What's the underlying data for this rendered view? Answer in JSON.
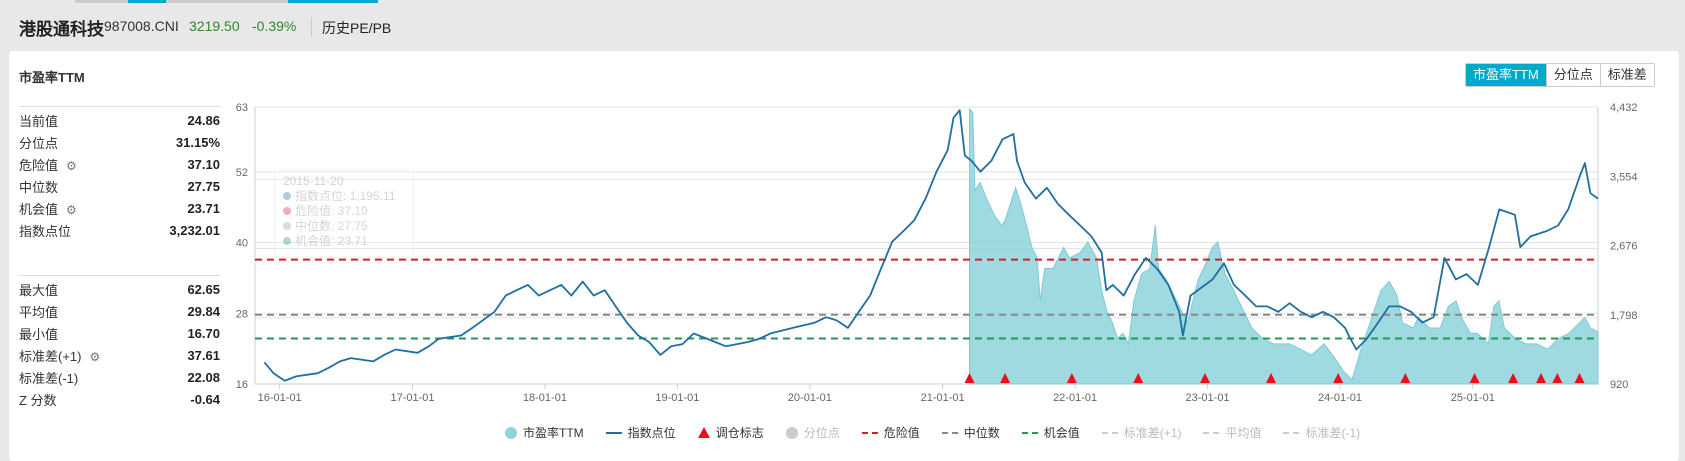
{
  "header": {
    "title": "港股通科技",
    "code": "987008.CNI",
    "price": "3219.50",
    "change": "-0.39%",
    "link": "历史PE/PB"
  },
  "section": {
    "title": "市盈率TTM",
    "tabs": [
      {
        "label": "市盈率TTM",
        "active": true
      },
      {
        "label": "分位点",
        "active": false
      },
      {
        "label": "标准差",
        "active": false
      }
    ]
  },
  "stats_top": [
    {
      "label": "当前值",
      "value": "24.86"
    },
    {
      "label": "分位点",
      "value": "31.15%"
    },
    {
      "label": "危险值",
      "value": "37.10",
      "gear": true
    },
    {
      "label": "中位数",
      "value": "27.75"
    },
    {
      "label": "机会值",
      "value": "23.71",
      "gear": true
    },
    {
      "label": "指数点位",
      "value": "3,232.01"
    }
  ],
  "stats_bottom": [
    {
      "label": "最大值",
      "value": "62.65"
    },
    {
      "label": "平均值",
      "value": "29.84"
    },
    {
      "label": "最小值",
      "value": "16.70"
    },
    {
      "label": "标准差(+1)",
      "value": "37.61",
      "gear": true
    },
    {
      "label": "标准差(-1)",
      "value": "22.08"
    },
    {
      "label": "Z 分数",
      "value": "-0.64"
    }
  ],
  "tooltip": {
    "date": "2015-11-20",
    "lines": [
      "指数点位: 1,195.11",
      "危险值: 37.10",
      "中位数: 27.75",
      "机会值: 23.71"
    ]
  },
  "legend": [
    {
      "label": "市盈率TTM",
      "type": "circle",
      "color": "#8fd3dc",
      "enabled": true
    },
    {
      "label": "指数点位",
      "type": "line",
      "color": "#1f6f9f",
      "enabled": true
    },
    {
      "label": "调仓标志",
      "type": "triangle",
      "color": "#e8101a",
      "enabled": true
    },
    {
      "label": "分位点",
      "type": "circle",
      "color": "#cccccc",
      "enabled": false
    },
    {
      "label": "危险值",
      "type": "dash",
      "color": "#d0202a",
      "enabled": true
    },
    {
      "label": "中位数",
      "type": "dash",
      "color": "#888888",
      "enabled": true
    },
    {
      "label": "机会值",
      "type": "dash",
      "color": "#229955",
      "enabled": true
    },
    {
      "label": "标准差(+1)",
      "type": "dash",
      "color": "#cccccc",
      "enabled": false
    },
    {
      "label": "平均值",
      "type": "dash",
      "color": "#cccccc",
      "enabled": false
    },
    {
      "label": "标准差(-1)",
      "type": "dash",
      "color": "#cccccc",
      "enabled": false
    }
  ],
  "chart_data": {
    "type": "line",
    "xlim": [
      "2015-10-25",
      "2025-12-12"
    ],
    "x_ticks": [
      "16-01-01",
      "17-01-01",
      "18-01-01",
      "19-01-01",
      "20-01-01",
      "21-01-01",
      "22-01-01",
      "23-01-01",
      "24-01-01",
      "25-01-01"
    ],
    "y_left": {
      "ticks": [
        "63",
        "52",
        "40",
        "28",
        "16"
      ],
      "range": [
        16,
        63
      ]
    },
    "y_right": {
      "ticks": [
        "4,432",
        "3,554",
        "2,676",
        "1,798",
        "920"
      ],
      "range": [
        920,
        4432
      ]
    },
    "grid": true,
    "reference_lines": [
      {
        "name": "危险值",
        "value": 37.1,
        "color": "#d0202a"
      },
      {
        "name": "中位数",
        "value": 27.75,
        "color": "#888888"
      },
      {
        "name": "机会值",
        "value": 23.71,
        "color": "#229955"
      }
    ],
    "series": [
      {
        "name": "指数点位",
        "axis": "right",
        "color": "#1f6f9f",
        "points": [
          [
            "2015-11-20",
            1195
          ],
          [
            "2015-12",
            1057
          ],
          [
            "2016-01",
            961
          ],
          [
            "2016-02",
            1016
          ],
          [
            "2016-04",
            1057
          ],
          [
            "2016-05",
            1125
          ],
          [
            "2016-06",
            1207
          ],
          [
            "2016-07",
            1248
          ],
          [
            "2016-09",
            1207
          ],
          [
            "2016-10",
            1289
          ],
          [
            "2016-11",
            1357
          ],
          [
            "2017-01",
            1316
          ],
          [
            "2017-02",
            1398
          ],
          [
            "2017-03",
            1494
          ],
          [
            "2017-05",
            1535
          ],
          [
            "2017-06",
            1631
          ],
          [
            "2017-08",
            1836
          ],
          [
            "2017-09",
            2041
          ],
          [
            "2017-10",
            2109
          ],
          [
            "2017-11",
            2177
          ],
          [
            "2017-12",
            2041
          ],
          [
            "2018-01",
            2109
          ],
          [
            "2018-02",
            2177
          ],
          [
            "2018-03",
            2041
          ],
          [
            "2018-04",
            2218
          ],
          [
            "2018-05",
            2041
          ],
          [
            "2018-06",
            2109
          ],
          [
            "2018-07",
            1904
          ],
          [
            "2018-08",
            1699
          ],
          [
            "2018-09",
            1535
          ],
          [
            "2018-10",
            1453
          ],
          [
            "2018-11",
            1289
          ],
          [
            "2018-12",
            1398
          ],
          [
            "2019-01",
            1426
          ],
          [
            "2019-02",
            1562
          ],
          [
            "2019-04",
            1453
          ],
          [
            "2019-05",
            1398
          ],
          [
            "2019-07",
            1453
          ],
          [
            "2019-08",
            1494
          ],
          [
            "2019-09",
            1562
          ],
          [
            "2019-11",
            1631
          ],
          [
            "2020-01",
            1699
          ],
          [
            "2020-02",
            1767
          ],
          [
            "2020-03",
            1726
          ],
          [
            "2020-04",
            1631
          ],
          [
            "2020-05",
            1836
          ],
          [
            "2020-06",
            2041
          ],
          [
            "2020-07",
            2382
          ],
          [
            "2020-08",
            2724
          ],
          [
            "2020-09",
            2860
          ],
          [
            "2020-10",
            2997
          ],
          [
            "2020-11",
            3270
          ],
          [
            "2020-12",
            3612
          ],
          [
            "2021-01",
            3885
          ],
          [
            "2021-01-31",
            4295
          ],
          [
            "2021-02-17",
            4391
          ],
          [
            "2021-03-03",
            3817
          ],
          [
            "2021-03-22",
            3749
          ],
          [
            "2021-04",
            3612
          ],
          [
            "2021-05",
            3749
          ],
          [
            "2021-06",
            4022
          ],
          [
            "2021-07",
            4090
          ],
          [
            "2021-07-25",
            3749
          ],
          [
            "2021-08",
            3475
          ],
          [
            "2021-09",
            3270
          ],
          [
            "2021-10",
            3407
          ],
          [
            "2021-11",
            3202
          ],
          [
            "2021-12",
            3065
          ],
          [
            "2022-01",
            2929
          ],
          [
            "2022-02",
            2792
          ],
          [
            "2022-03",
            2587
          ],
          [
            "2022-03-28",
            2109
          ],
          [
            "2022-04",
            2177
          ],
          [
            "2022-05",
            2041
          ],
          [
            "2022-06",
            2314
          ],
          [
            "2022-07",
            2519
          ],
          [
            "2022-08",
            2382
          ],
          [
            "2022-09",
            2177
          ],
          [
            "2022-10",
            1836
          ],
          [
            "2022-10-25",
            1535
          ],
          [
            "2022-11",
            2041
          ],
          [
            "2023-01",
            2246
          ],
          [
            "2023-02",
            2450
          ],
          [
            "2023-03",
            2177
          ],
          [
            "2023-04",
            2041
          ],
          [
            "2023-05",
            1904
          ],
          [
            "2023-06",
            1904
          ],
          [
            "2023-07",
            1836
          ],
          [
            "2023-08",
            1945
          ],
          [
            "2023-09",
            1836
          ],
          [
            "2023-10",
            1767
          ],
          [
            "2023-11",
            1836
          ],
          [
            "2023-12",
            1767
          ],
          [
            "2024-01",
            1631
          ],
          [
            "2024-01-25",
            1535
          ],
          [
            "2024-02",
            1357
          ],
          [
            "2024-03",
            1494
          ],
          [
            "2024-04",
            1699
          ],
          [
            "2024-05",
            1904
          ],
          [
            "2024-06",
            1904
          ],
          [
            "2024-07",
            1836
          ],
          [
            "2024-08",
            1699
          ],
          [
            "2024-09",
            1767
          ],
          [
            "2024-10",
            2519
          ],
          [
            "2024-11",
            2246
          ],
          [
            "2024-12",
            2314
          ],
          [
            "2025-01",
            2177
          ],
          [
            "2025-02",
            2655
          ],
          [
            "2025-03",
            3134
          ],
          [
            "2025-04-27",
            3065
          ],
          [
            "2025-05-12",
            2655
          ],
          [
            "2025-06-09",
            2792
          ],
          [
            "2025-07-24",
            2860
          ],
          [
            "2025-08-24",
            2929
          ],
          [
            "2025-09-21",
            3134
          ],
          [
            "2025-10-22",
            3544
          ],
          [
            "2025-11-06",
            3721
          ],
          [
            "2025-11-21",
            3339
          ],
          [
            "2025-12-12",
            3270
          ]
        ]
      },
      {
        "name": "市盈率TTM",
        "axis": "left",
        "type": "area",
        "color": "#8fd3dc",
        "points": [
          [
            "2021-03-16",
            62.65
          ],
          [
            "2021-03-25",
            62.1
          ],
          [
            "2021-03-31",
            48.9
          ],
          [
            "2021-04-14",
            50.2
          ],
          [
            "2021-05-02",
            47.5
          ],
          [
            "2021-05-23",
            44.7
          ],
          [
            "2021-06-13",
            42.9
          ],
          [
            "2021-06-22",
            43.8
          ],
          [
            "2021-07-21",
            49.3
          ],
          [
            "2021-08-05",
            46.5
          ],
          [
            "2021-08-20",
            42.9
          ],
          [
            "2021-09-04",
            39.2
          ],
          [
            "2021-09-18",
            37.4
          ],
          [
            "2021-09-27",
            30.1
          ],
          [
            "2021-10-09",
            35.6
          ],
          [
            "2021-11-01",
            35.6
          ],
          [
            "2021-12-01",
            39.2
          ],
          [
            "2021-12-16",
            37.4
          ],
          [
            "2022-01-15",
            38.3
          ],
          [
            "2022-02-05",
            40.1
          ],
          [
            "2022-03-01",
            37.4
          ],
          [
            "2022-03-15",
            31.9
          ],
          [
            "2022-03-30",
            28.3
          ],
          [
            "2022-04-14",
            26.4
          ],
          [
            "2022-04-28",
            23.7
          ],
          [
            "2022-05-13",
            24.6
          ],
          [
            "2022-05-28",
            22.8
          ],
          [
            "2022-06-12",
            30.1
          ],
          [
            "2022-07-03",
            34.7
          ],
          [
            "2022-07-26",
            35.6
          ],
          [
            "2022-08-10",
            42.9
          ],
          [
            "2022-08-19",
            35.6
          ],
          [
            "2022-09-09",
            33.7
          ],
          [
            "2022-10-08",
            30.1
          ],
          [
            "2022-11-07",
            26.4
          ],
          [
            "2022-12-06",
            33.7
          ],
          [
            "2022-12-21",
            35.6
          ],
          [
            "2023-01-14",
            39.2
          ],
          [
            "2023-01-29",
            40.1
          ],
          [
            "2023-02-18",
            34.7
          ],
          [
            "2023-03-14",
            31.9
          ],
          [
            "2023-04-04",
            29.2
          ],
          [
            "2023-05-03",
            25.5
          ],
          [
            "2023-06-02",
            23.7
          ],
          [
            "2023-07-02",
            22.8
          ],
          [
            "2023-08-15",
            22.8
          ],
          [
            "2023-09-14",
            21.9
          ],
          [
            "2023-10-14",
            20.9
          ],
          [
            "2023-11-18",
            22.8
          ],
          [
            "2023-12-12",
            20.9
          ],
          [
            "2024-01-10",
            18.2
          ],
          [
            "2024-02-03",
            16.7
          ],
          [
            "2024-02-23",
            20.9
          ],
          [
            "2024-03-24",
            26.4
          ],
          [
            "2024-04-23",
            31.9
          ],
          [
            "2024-05-16",
            33.4
          ],
          [
            "2024-06-06",
            31.0
          ],
          [
            "2024-06-21",
            26.4
          ],
          [
            "2024-07-21",
            25.5
          ],
          [
            "2024-08-04",
            27.3
          ],
          [
            "2024-09-03",
            25.5
          ],
          [
            "2024-10-03",
            25.5
          ],
          [
            "2024-10-26",
            29.2
          ],
          [
            "2024-11-16",
            30.1
          ],
          [
            "2024-12-01",
            27.3
          ],
          [
            "2024-12-25",
            24.6
          ],
          [
            "2025-01-14",
            24.6
          ],
          [
            "2025-02-13",
            22.8
          ],
          [
            "2025-02-28",
            29.2
          ],
          [
            "2025-03-14",
            30.1
          ],
          [
            "2025-03-29",
            25.5
          ],
          [
            "2025-04-28",
            23.7
          ],
          [
            "2025-05-27",
            22.8
          ],
          [
            "2025-06-26",
            22.8
          ],
          [
            "2025-07-26",
            21.9
          ],
          [
            "2025-08-24",
            23.7
          ],
          [
            "2025-09-23",
            24.6
          ],
          [
            "2025-10-22",
            26.4
          ],
          [
            "2025-11-06",
            27.3
          ],
          [
            "2025-11-21",
            25.5
          ],
          [
            "2025-12-12",
            24.86
          ]
        ]
      }
    ],
    "rebalance_markers": [
      "2021-03-16",
      "2021-06-22",
      "2021-12-23",
      "2022-06-24",
      "2022-12-25",
      "2023-06-25",
      "2023-12-27",
      "2024-06-29",
      "2025-01-06",
      "2025-04-22",
      "2025-07-08",
      "2025-08-22",
      "2025-10-22"
    ]
  }
}
